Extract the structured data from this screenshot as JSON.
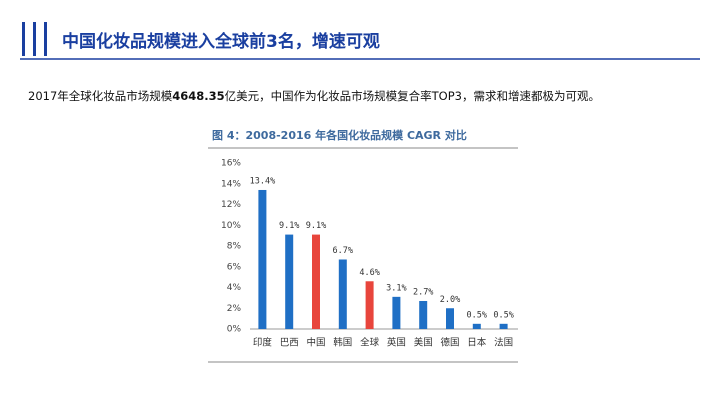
{
  "header": {
    "title": "中国化妆品规模进入全球前3名，增速可观"
  },
  "body": {
    "text_before": "2017年全球化妆品市场规模",
    "text_bold": "4648.35",
    "text_after": "亿美元，中国作为化妆品市场规模复合率TOP3，需求和增速都极为可观。"
  },
  "chart_data": {
    "type": "bar",
    "title": "图 4：2008-2016 年各国化妆品规模 CAGR 对比",
    "categories": [
      "印度",
      "巴西",
      "中国",
      "韩国",
      "全球",
      "英国",
      "美国",
      "德国",
      "日本",
      "法国"
    ],
    "values": [
      13.4,
      9.1,
      9.1,
      6.7,
      4.6,
      3.1,
      2.7,
      2.0,
      0.5,
      0.5
    ],
    "value_labels": [
      "13.4%",
      "9.1%",
      "9.1%",
      "6.7%",
      "4.6%",
      "3.1%",
      "2.7%",
      "2.0%",
      "0.5%",
      "0.5%"
    ],
    "colors": [
      "#1f6fc5",
      "#1f6fc5",
      "#e8453c",
      "#1f6fc5",
      "#e8453c",
      "#1f6fc5",
      "#1f6fc5",
      "#1f6fc5",
      "#1f6fc5",
      "#1f6fc5"
    ],
    "ylim": [
      0,
      16
    ],
    "yticks": [
      {
        "value": 0,
        "label": "0%"
      },
      {
        "value": 2,
        "label": "2%"
      },
      {
        "value": 4,
        "label": "4%"
      },
      {
        "value": 6,
        "label": "6%"
      },
      {
        "value": 8,
        "label": "8%"
      },
      {
        "value": 10,
        "label": "10%"
      },
      {
        "value": 12,
        "label": "12%"
      },
      {
        "value": 14,
        "label": "14%"
      },
      {
        "value": 16,
        "label": "16%"
      }
    ],
    "grid": false
  }
}
